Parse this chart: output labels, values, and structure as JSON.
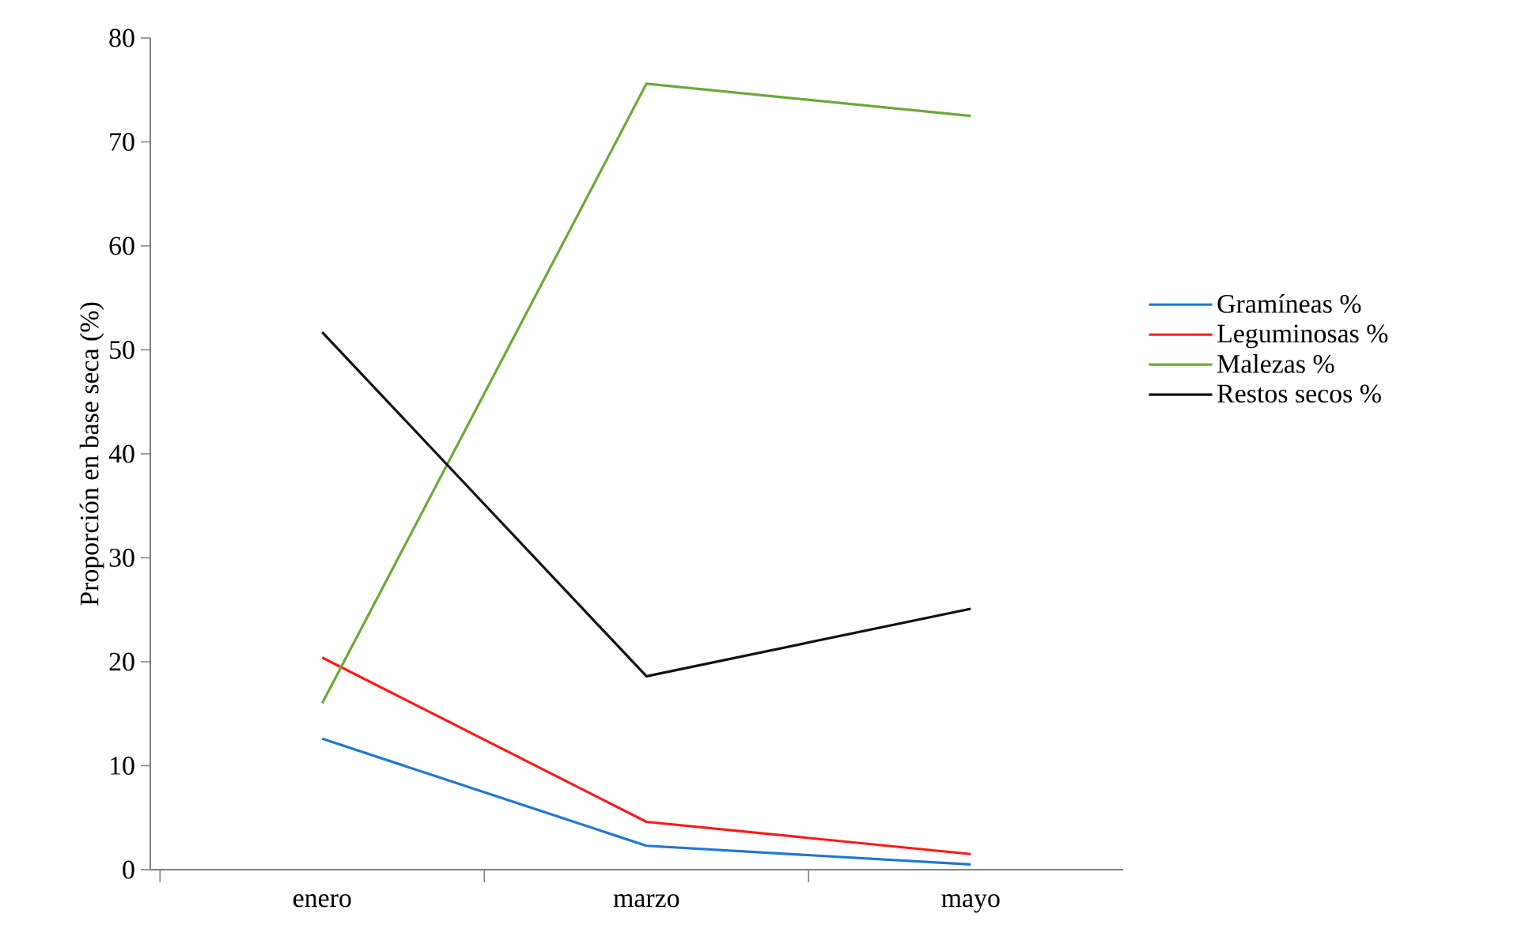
{
  "chart_data": {
    "type": "line",
    "ylabel": "Proporción en base seca (%)",
    "categories": [
      "enero",
      "marzo",
      "mayo"
    ],
    "series": [
      {
        "name": "Gramíneas %",
        "color": "#1f77d0",
        "values": [
          12.6,
          2.3,
          0.5
        ]
      },
      {
        "name": "Leguminosas %",
        "color": "#ff1a1a",
        "values": [
          20.4,
          4.6,
          1.5
        ]
      },
      {
        "name": "Malezas %",
        "color": "#6aaa3a",
        "values": [
          16,
          75.6,
          72.5
        ]
      },
      {
        "name": "Restos secos %",
        "color": "#111111",
        "values": [
          51.7,
          18.6,
          25.1
        ]
      }
    ],
    "ylim": [
      0,
      80
    ],
    "yticks": [
      0,
      10,
      20,
      30,
      40,
      50,
      60,
      70,
      80
    ],
    "grid": false,
    "legend": "right",
    "marker": "none",
    "line_style": "solid"
  }
}
